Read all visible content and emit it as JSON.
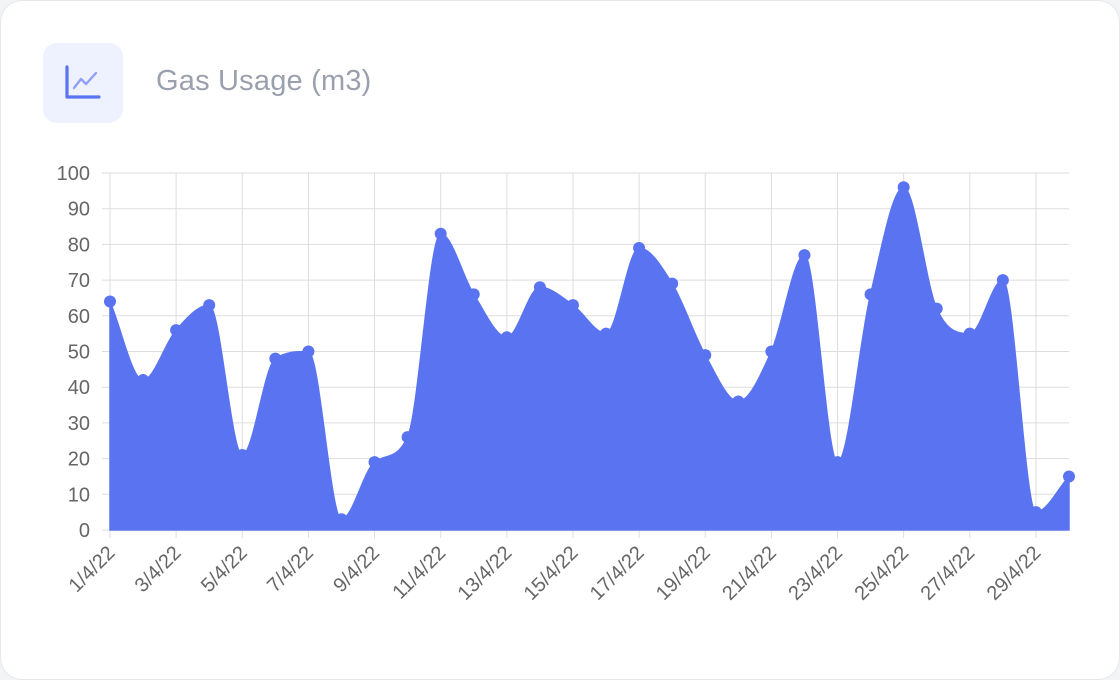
{
  "header": {
    "title": "Gas Usage (m3)",
    "icon": "line-chart-icon"
  },
  "colors": {
    "fill": "#5a74f1",
    "point": "#5a74f1",
    "grid": "#dddddd",
    "tick_text": "#666666",
    "icon_bg": "#eef2ff",
    "icon_stroke": "#5a74f1"
  },
  "chart_data": {
    "type": "area",
    "x": [
      "1/4/22",
      "2/4/22",
      "3/4/22",
      "4/4/22",
      "5/4/22",
      "6/4/22",
      "7/4/22",
      "8/4/22",
      "9/4/22",
      "10/4/22",
      "11/4/22",
      "12/4/22",
      "13/4/22",
      "14/4/22",
      "15/4/22",
      "16/4/22",
      "17/4/22",
      "18/4/22",
      "19/4/22",
      "20/4/22",
      "21/4/22",
      "22/4/22",
      "23/4/22",
      "24/4/22",
      "25/4/22",
      "26/4/22",
      "27/4/22",
      "28/4/22",
      "29/4/22",
      "30/4/22"
    ],
    "x_tick_labels": [
      "1/4/22",
      "3/4/22",
      "5/4/22",
      "7/4/22",
      "9/4/22",
      "11/4/22",
      "13/4/22",
      "15/4/22",
      "17/4/22",
      "19/4/22",
      "21/4/22",
      "23/4/22",
      "25/4/22",
      "27/4/22",
      "29/4/22"
    ],
    "values": [
      64,
      42,
      56,
      63,
      21,
      48,
      50,
      3,
      19,
      26,
      83,
      66,
      54,
      68,
      63,
      55,
      79,
      69,
      49,
      36,
      50,
      77,
      19,
      66,
      96,
      62,
      55,
      70,
      5,
      15
    ],
    "y_ticks": [
      0,
      10,
      20,
      30,
      40,
      50,
      60,
      70,
      80,
      90,
      100
    ],
    "ylim": [
      0,
      100
    ],
    "grid": true,
    "legend": "none"
  }
}
